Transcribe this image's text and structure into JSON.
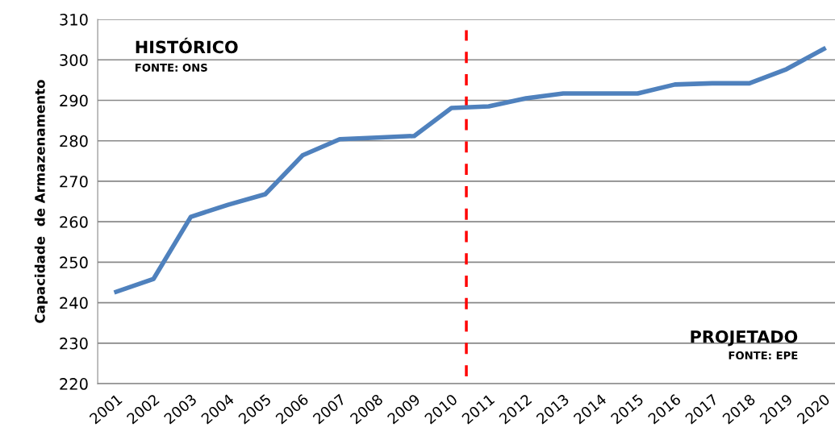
{
  "chart_data": {
    "type": "line",
    "ylabel": "Capacidade  de Armazenamento",
    "x": [
      2001,
      2002,
      2003,
      2004,
      2005,
      2006,
      2007,
      2008,
      2009,
      2010,
      2011,
      2012,
      2013,
      2014,
      2015,
      2016,
      2017,
      2018,
      2019,
      2020
    ],
    "series": [
      {
        "color": "#4f81bd",
        "values": [
          242.7,
          245.9,
          261.2,
          264.2,
          266.8,
          276.4,
          280.4,
          280.8,
          281.2,
          288.1,
          288.5,
          290.5,
          291.7,
          291.7,
          291.7,
          293.9,
          294.2,
          294.2,
          297.7,
          302.7
        ]
      }
    ],
    "xlim": [
      2000.5,
      2020.3
    ],
    "xticks": [
      2001,
      2002,
      2003,
      2004,
      2005,
      2006,
      2007,
      2008,
      2009,
      2010,
      2011,
      2012,
      2013,
      2014,
      2015,
      2016,
      2017,
      2018,
      2019,
      2020
    ],
    "ylim": [
      220,
      310
    ],
    "yticks": [
      220,
      230,
      240,
      250,
      260,
      270,
      280,
      290,
      300,
      310
    ],
    "grid": "y",
    "marker": "none",
    "line_style": "solid",
    "ref_lines": [
      {
        "axis": "x",
        "value": 2010.4,
        "color": "#ff0000",
        "line_style": "dashed"
      }
    ],
    "annotations": [
      "HISTÓRICO",
      "FONTE: ONS",
      "PROJETADO",
      "FONTE: EPE"
    ]
  }
}
